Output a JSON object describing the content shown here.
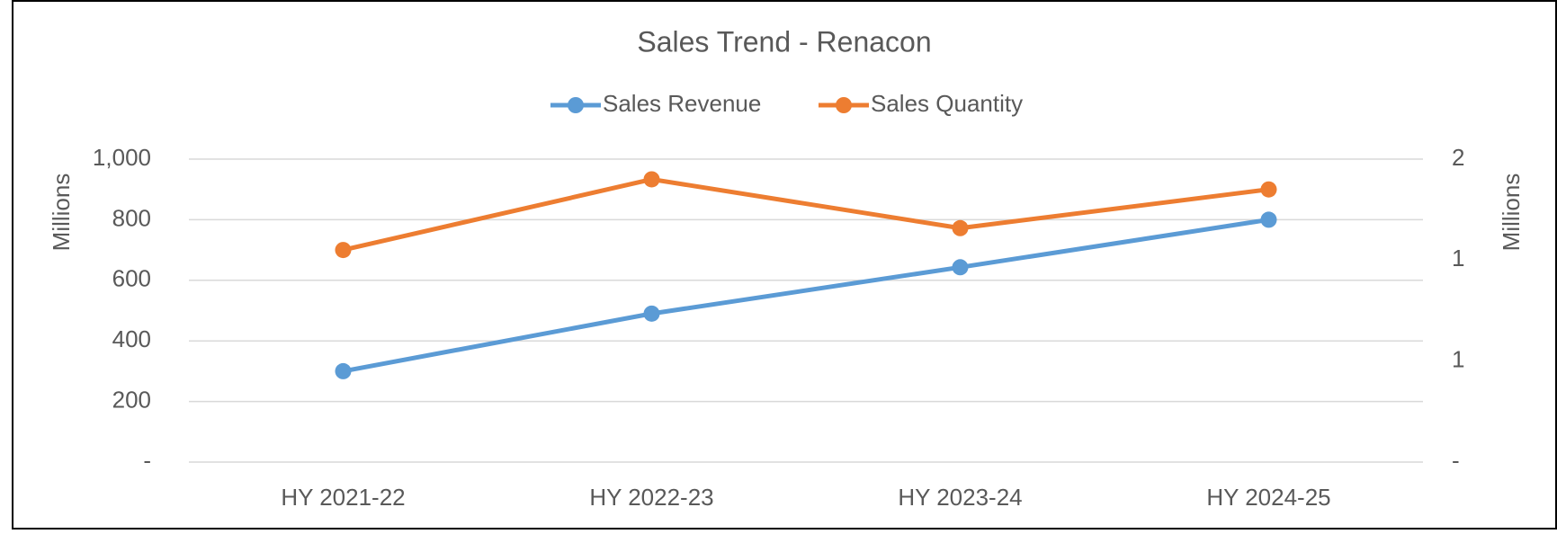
{
  "chart_data": {
    "type": "line",
    "title": "Sales Trend - Renacon",
    "categories": [
      "HY 2021-22",
      "HY 2022-23",
      "HY 2023-24",
      "HY 2024-25"
    ],
    "series": [
      {
        "name": "Sales Revenue",
        "color": "#5b9bd5",
        "values": [
          300,
          490,
          643,
          800
        ]
      },
      {
        "name": "Sales Quantity",
        "color": "#ed7d31",
        "values": [
          1.26,
          1.68,
          1.39,
          1.62
        ],
        "axis": "y2"
      }
    ],
    "ylabel": "Millions",
    "y2label": "Millions",
    "ylim": [
      0,
      1000
    ],
    "yticks": [
      {
        "value": 0,
        "label": "-"
      },
      200,
      400,
      600,
      800,
      {
        "value": 1000,
        "label": "1,000"
      }
    ],
    "y2lim": [
      0,
      1.8
    ],
    "y2ticks": [
      {
        "value": 0,
        "label": "-"
      },
      {
        "value": 0.6,
        "label": "1"
      },
      {
        "value": 1.2,
        "label": "1"
      },
      {
        "value": 1.8,
        "label": "2"
      }
    ],
    "grid": true,
    "legend": "top"
  }
}
